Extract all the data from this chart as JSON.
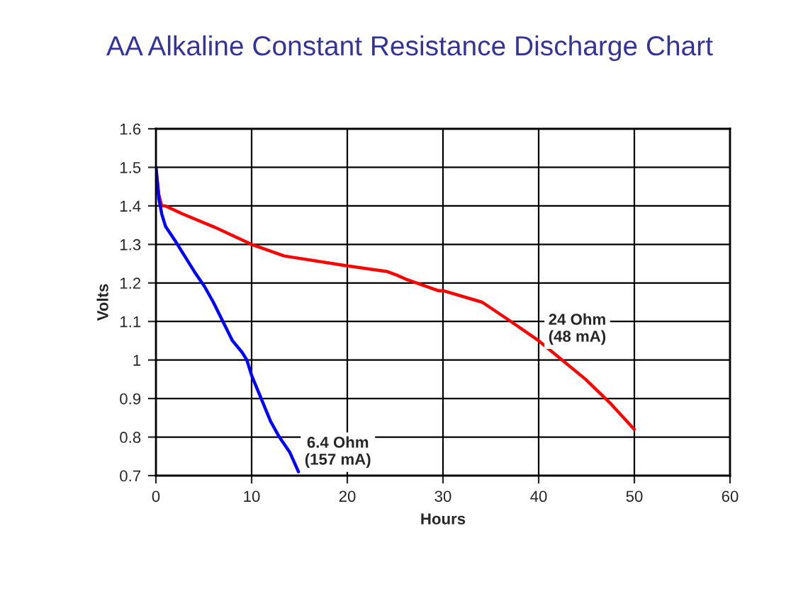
{
  "chart_data": {
    "type": "line",
    "title": "AA Alkaline Constant Resistance Discharge Chart",
    "xlabel": "Hours",
    "ylabel": "Volts",
    "series": [
      {
        "name": "24 Ohm\n(48 mA)",
        "color": "#ff0000",
        "x": [
          0,
          0.3,
          0.6,
          1,
          2.7,
          6.1,
          10,
          13.4,
          19.8,
          24.1,
          25.2,
          26.1,
          29.5,
          30,
          34.1,
          37.1,
          40,
          44.9,
          47.4,
          50
        ],
        "values": [
          1.5,
          1.43,
          1.4,
          1.4,
          1.38,
          1.345,
          1.3,
          1.27,
          1.245,
          1.23,
          1.22,
          1.21,
          1.18,
          1.18,
          1.15,
          1.1,
          1.05,
          0.95,
          0.89,
          0.82
        ]
      },
      {
        "name": "6.4 Ohm\n(157 mA)",
        "color": "#0000ff",
        "x": [
          0,
          0.3,
          0.6,
          1,
          2,
          3,
          4,
          5.1,
          6,
          7,
          8,
          9,
          9.5,
          10,
          11,
          12,
          12.9,
          14,
          14.9
        ],
        "values": [
          1.5,
          1.42,
          1.38,
          1.347,
          1.31,
          1.27,
          1.23,
          1.19,
          1.15,
          1.1,
          1.05,
          1.02,
          1.0,
          0.96,
          0.9,
          0.84,
          0.8,
          0.76,
          0.71
        ]
      }
    ],
    "xlim": [
      0,
      60
    ],
    "xticks": [
      0,
      10,
      20,
      30,
      40,
      50,
      60
    ],
    "ylim": [
      0.7,
      1.6
    ],
    "yticks": [
      0.7,
      0.8,
      0.9,
      1,
      1.1,
      1.2,
      1.3,
      1.4,
      1.5,
      1.6
    ],
    "grid": true,
    "legend": false,
    "marker": "none",
    "line_style": "solid"
  }
}
